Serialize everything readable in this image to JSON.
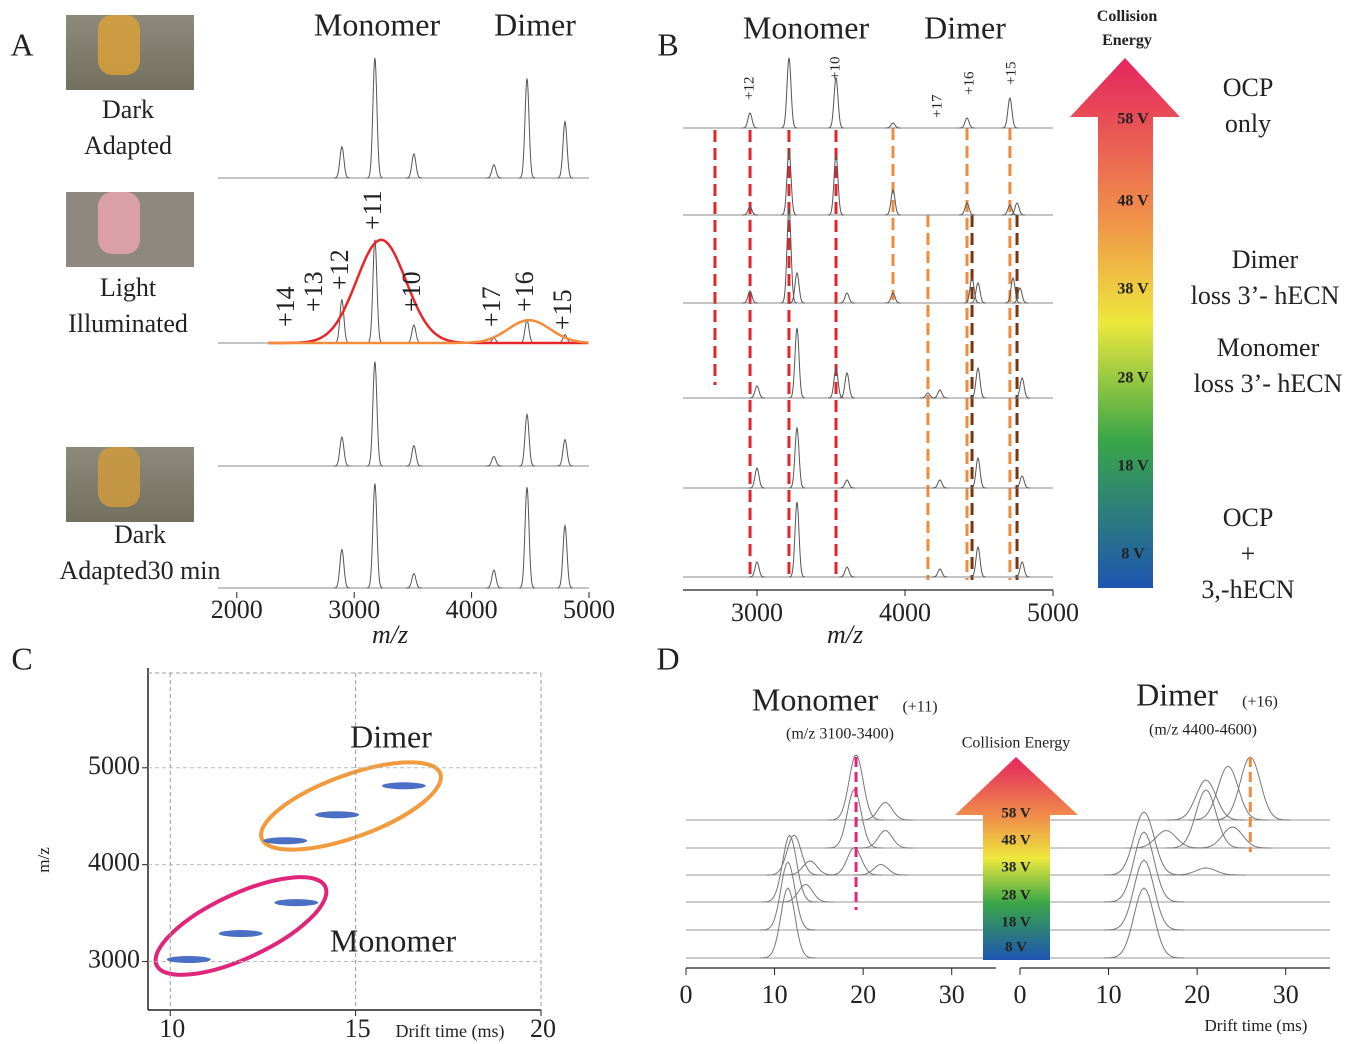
{
  "chart_data": [
    {
      "type": "spectra",
      "panel": "A",
      "monomer_title": "Monomer",
      "dimer_title": "Dimer",
      "monomer_color": "#e8262a",
      "dimer_color": "#f58b3c",
      "samples": [
        "Dark\nAdapted",
        "Light\nIlluminated",
        "Dark\nAdapted30 min"
      ],
      "xlabel": "m/z",
      "xlim": [
        1840,
        5000
      ],
      "xticks": [
        2000,
        3000,
        4000,
        5000
      ],
      "series": [
        {
          "x": [
            2895,
            3176,
            3509,
            4190,
            4472,
            4796
          ],
          "values": [
            26,
            100,
            20,
            11,
            83,
            47
          ]
        },
        {
          "x": [
            2895,
            3176,
            3509,
            4190,
            4472,
            4796
          ],
          "values": [
            36,
            86,
            15,
            4,
            19,
            7
          ]
        },
        {
          "x": [
            2895,
            3176,
            3509,
            4190,
            4472,
            4796
          ],
          "values": [
            24,
            87,
            17,
            8,
            43,
            22
          ]
        },
        {
          "x": [
            2895,
            3176,
            3509,
            4190,
            4472,
            4796
          ],
          "values": [
            32,
            87,
            12,
            15,
            84,
            52
          ]
        }
      ],
      "envelopes": [
        {
          "color": "#e8262a",
          "center": 3230,
          "height": 86,
          "sigma": 210
        },
        {
          "color": "#f58b3c",
          "center": 4490,
          "height": 19,
          "sigma": 180
        }
      ],
      "charge_labels": [
        {
          "label": "+14",
          "x": 2435
        },
        {
          "label": "+13",
          "x": 2673
        },
        {
          "label": "+12",
          "x": 2895
        },
        {
          "label": "+11",
          "x": 3176
        },
        {
          "label": "+10",
          "x": 3509
        },
        {
          "label": "+17",
          "x": 4190
        },
        {
          "label": "+16",
          "x": 4472
        },
        {
          "label": "+15",
          "x": 4796
        }
      ]
    },
    {
      "type": "spectra",
      "panel": "B",
      "monomer_title": "Monomer",
      "dimer_title": "Dimer",
      "monomer_color": "#e8262a",
      "dimer_color": "#f58b3c",
      "xlabel": "m/z",
      "xlim": [
        2500,
        5000
      ],
      "xticks": [
        3000,
        4000,
        5000
      ],
      "series": [
        {
          "x": [
            2953,
            3216,
            3534,
            3919,
            4419,
            4709
          ],
          "values": [
            15,
            70,
            50,
            5,
            10,
            30
          ]
        },
        {
          "x": [
            2953,
            3216,
            3534,
            3919,
            4419,
            4709,
            4757
          ],
          "values": [
            8,
            65,
            60,
            25,
            12,
            10,
            12
          ]
        },
        {
          "x": [
            2953,
            3216,
            3270,
            3608,
            3919,
            4453,
            4493,
            4730,
            4777
          ],
          "values": [
            12,
            95,
            30,
            10,
            10,
            25,
            20,
            25,
            15
          ]
        },
        {
          "x": [
            3000,
            3270,
            3534,
            3608,
            4155,
            4236,
            4493,
            4791
          ],
          "values": [
            12,
            70,
            30,
            25,
            5,
            8,
            30,
            20
          ]
        },
        {
          "x": [
            3000,
            3270,
            3608,
            4236,
            4493,
            4791
          ],
          "values": [
            20,
            60,
            8,
            8,
            30,
            12
          ]
        },
        {
          "x": [
            3000,
            3270,
            3608,
            4236,
            4493,
            4791
          ],
          "values": [
            15,
            75,
            10,
            8,
            30,
            15
          ]
        }
      ],
      "markers": [
        {
          "x": 2716,
          "color": "#e0262a"
        },
        {
          "x": 2953,
          "color": "#e0262a"
        },
        {
          "x": 3216,
          "color": "#e0262a"
        },
        {
          "x": 3534,
          "color": "#e0262a"
        },
        {
          "x": 3919,
          "color": "#f08a3c"
        },
        {
          "x": 4155,
          "color": "#f08a3c"
        },
        {
          "x": 4419,
          "color": "#f08a3c"
        },
        {
          "x": 4709,
          "color": "#f08a3c"
        },
        {
          "x": 4453,
          "color": "#7a3410"
        },
        {
          "x": 4757,
          "color": "#7a3410"
        }
      ],
      "charge_labels": [
        {
          "label": "+12",
          "x": 2953
        },
        {
          "label": "+10",
          "x": 3534
        },
        {
          "label": "+17",
          "x": 4223
        },
        {
          "label": "+16",
          "x": 4439
        },
        {
          "label": "+15",
          "x": 4723
        }
      ],
      "collision_title": "Collision\nEnergy",
      "collision_energies": [
        "58 V",
        "48 V",
        "38 V",
        "28 V",
        "18 V",
        "8 V"
      ],
      "annotations": [
        "OCP\nonly",
        "Dimer\nloss 3’- hECN",
        "Monomer\nloss 3’- hECN",
        "OCP\n+\n3,-hECN"
      ]
    },
    {
      "type": "scatter",
      "panel": "C",
      "xlabel": "Drift time (ms)",
      "ylabel": "m/z",
      "xlim": [
        9.4,
        20
      ],
      "ylim": [
        2500,
        6030
      ],
      "xticks": [
        10,
        15,
        20
      ],
      "yticks": [
        3000,
        4000,
        5000
      ],
      "grid": true,
      "color": "#4a6fc4",
      "x": [
        10.5,
        11.9,
        13.4,
        13.1,
        14.5,
        16.3
      ],
      "values": [
        3021,
        3289,
        3608,
        4247,
        4515,
        4814
      ],
      "dimer_label": "Dimer",
      "dimer_color": "#f29a3e",
      "monomer_label": "Monomer",
      "monomer_color": "#e0267a"
    },
    {
      "type": "mobilogram",
      "panel": "D",
      "xlabel": "Drift time (ms)",
      "xlim": [
        0,
        35
      ],
      "xticks": [
        0,
        10,
        20,
        30
      ],
      "monomer": {
        "title": "Monomer",
        "charge": "(+11)",
        "range": "(m/z 3100-3400)",
        "color": "#e0267a",
        "marker": 19.2,
        "traces": [
          {
            "x": [
              19.2,
              22.5
            ],
            "values": [
              93,
              25
            ]
          },
          {
            "x": [
              19,
              22.5
            ],
            "values": [
              83,
              25
            ]
          },
          {
            "x": [
              12.2,
              14,
              19,
              22
            ],
            "values": [
              57,
              20,
              39,
              15
            ]
          },
          {
            "x": [
              11.7,
              13.5
            ],
            "values": [
              95,
              25
            ]
          },
          {
            "x": [
              11.5
            ],
            "values": [
              97
            ]
          },
          {
            "x": [
              11.5
            ],
            "values": [
              100
            ]
          }
        ]
      },
      "dimer": {
        "title": "Dimer",
        "charge": "(+16)",
        "range": "(m/z 4400-4600)",
        "color": "#f08a3c",
        "marker": 26,
        "traces": [
          {
            "x": [
              21,
              23.5,
              26
            ],
            "values": [
              57,
              77,
              90
            ]
          },
          {
            "x": [
              16.5,
              21,
              24
            ],
            "values": [
              25,
              83,
              30
            ]
          },
          {
            "x": [
              14,
              21
            ],
            "values": [
              90,
              10
            ]
          },
          {
            "x": [
              14
            ],
            "values": [
              100
            ]
          },
          {
            "x": [
              14
            ],
            "values": [
              100
            ]
          },
          {
            "x": [
              14
            ],
            "values": [
              100
            ]
          }
        ]
      },
      "collision_title": "Collision Energy",
      "collision_energies": [
        "58 V",
        "48 V",
        "38 V",
        "28 V",
        "18 V",
        "8 V"
      ]
    }
  ]
}
